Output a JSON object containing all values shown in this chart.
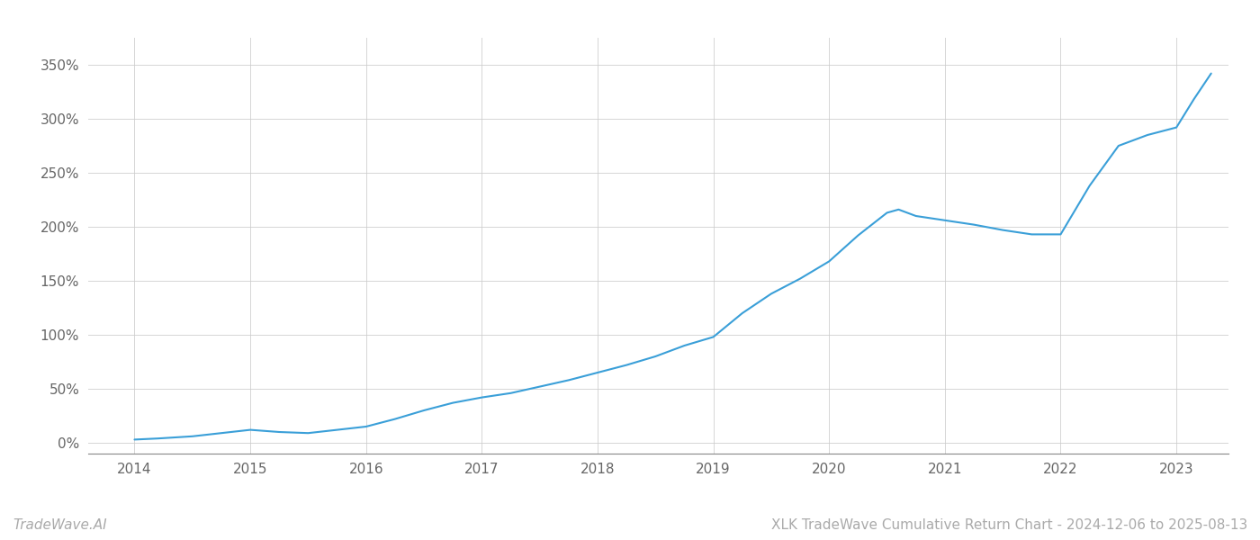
{
  "title": "XLK TradeWave Cumulative Return Chart - 2024-12-06 to 2025-08-13",
  "watermark": "TradeWave.AI",
  "line_color": "#3a9fd8",
  "line_width": 1.5,
  "background_color": "#ffffff",
  "grid_color": "#cccccc",
  "x_years": [
    2014,
    2015,
    2016,
    2017,
    2018,
    2019,
    2020,
    2021,
    2022,
    2023
  ],
  "y_ticks": [
    0,
    50,
    100,
    150,
    200,
    250,
    300,
    350
  ],
  "xlim": [
    2013.6,
    2023.45
  ],
  "ylim": [
    -10,
    375
  ],
  "data_x": [
    2014.0,
    2014.2,
    2014.5,
    2014.75,
    2015.0,
    2015.25,
    2015.5,
    2015.75,
    2016.0,
    2016.25,
    2016.5,
    2016.75,
    2017.0,
    2017.25,
    2017.5,
    2017.75,
    2018.0,
    2018.25,
    2018.5,
    2018.75,
    2019.0,
    2019.25,
    2019.5,
    2019.75,
    2020.0,
    2020.25,
    2020.5,
    2020.6,
    2020.75,
    2021.0,
    2021.25,
    2021.5,
    2021.75,
    2022.0,
    2022.25,
    2022.5,
    2022.75,
    2023.0,
    2023.15,
    2023.3
  ],
  "data_y": [
    3,
    4,
    6,
    9,
    12,
    10,
    9,
    12,
    15,
    22,
    30,
    37,
    42,
    46,
    52,
    58,
    65,
    72,
    80,
    90,
    98,
    120,
    138,
    152,
    168,
    192,
    213,
    216,
    210,
    206,
    202,
    197,
    193,
    193,
    238,
    275,
    285,
    292,
    318,
    342
  ]
}
